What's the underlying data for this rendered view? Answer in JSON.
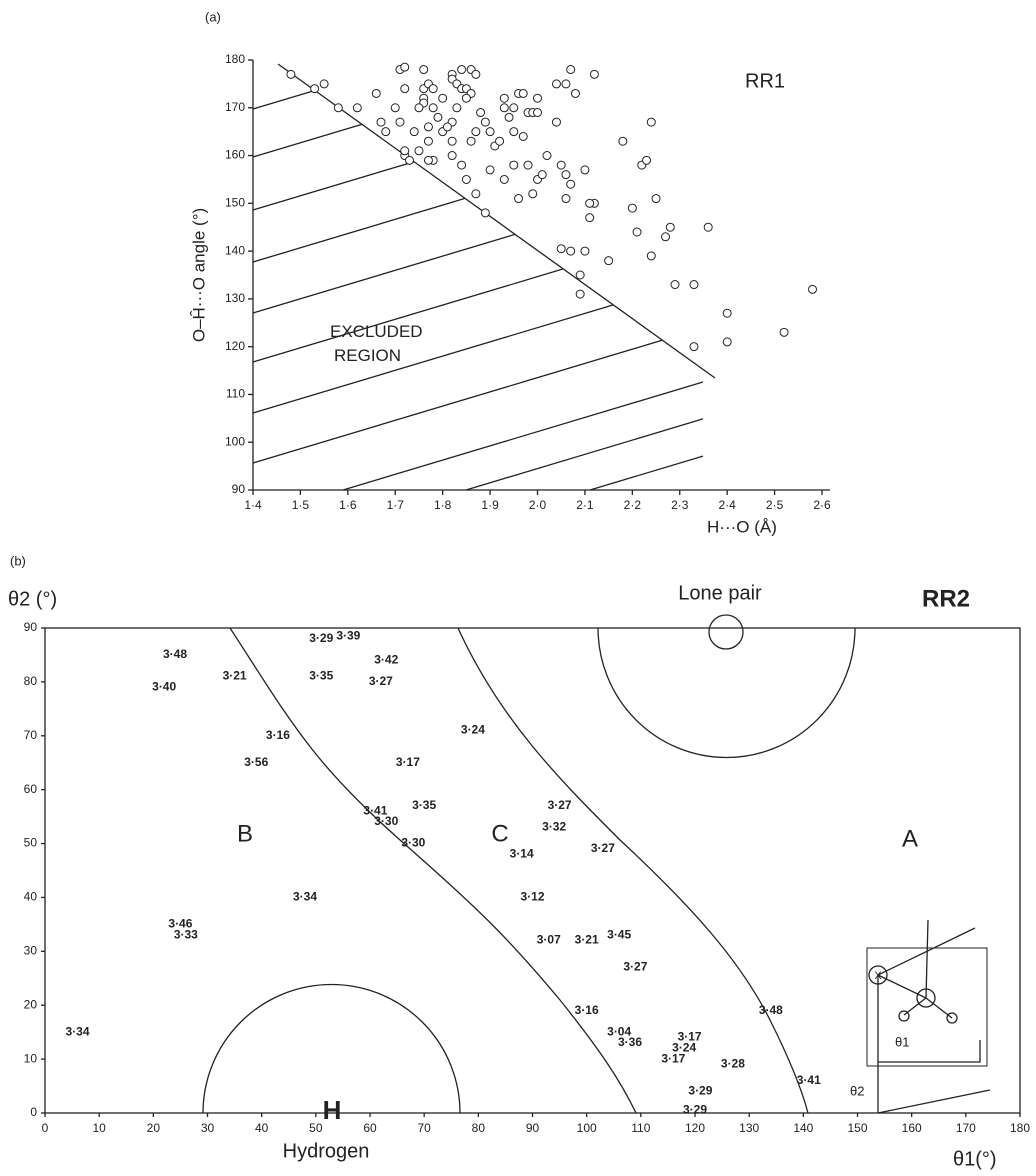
{
  "chart_data": [
    {
      "type": "scatter",
      "panel_label": "(a)",
      "title": "RR1",
      "x_label": "H···O (Å)",
      "y_label": "O–Ĥ···O angle (°)",
      "annotation": "EXCLUDED\nREGION",
      "xlim": [
        1.4,
        2.6
      ],
      "ylim": [
        90,
        180
      ],
      "xticks": [
        {
          "value": 1.4,
          "label": "1·4"
        },
        {
          "value": 1.5,
          "label": "1·5"
        },
        {
          "value": 1.6,
          "label": "1·6"
        },
        {
          "value": 1.7,
          "label": "1·7"
        },
        {
          "value": 1.8,
          "label": "1·8"
        },
        {
          "value": 1.9,
          "label": "1·9"
        },
        {
          "value": 2.0,
          "label": "2·0"
        },
        {
          "value": 2.1,
          "label": "2·1"
        },
        {
          "value": 2.2,
          "label": "2·2"
        },
        {
          "value": 2.3,
          "label": "2·3"
        },
        {
          "value": 2.4,
          "label": "2·4"
        },
        {
          "value": 2.5,
          "label": "2·5"
        },
        {
          "value": 2.6,
          "label": "2·6"
        }
      ],
      "yticks": [
        90,
        100,
        110,
        120,
        130,
        140,
        150,
        160,
        170,
        180
      ],
      "x": [
        1.48,
        1.53,
        1.55,
        1.58,
        1.62,
        1.66,
        1.68,
        1.67,
        1.71,
        1.72,
        1.72,
        1.7,
        1.71,
        1.72,
        1.73,
        1.72,
        1.74,
        1.75,
        1.76,
        1.76,
        1.77,
        1.78,
        1.76,
        1.78,
        1.79,
        1.77,
        1.8,
        1.77,
        1.78,
        1.77,
        1.76,
        1.75,
        1.8,
        1.82,
        1.82,
        1.83,
        1.84,
        1.85,
        1.86,
        1.84,
        1.86,
        1.87,
        1.85,
        1.83,
        1.82,
        1.81,
        1.82,
        1.82,
        1.84,
        1.85,
        1.87,
        1.86,
        1.87,
        1.88,
        1.89,
        1.9,
        1.91,
        1.9,
        1.92,
        1.93,
        1.94,
        1.93,
        1.95,
        1.96,
        1.97,
        1.95,
        1.97,
        1.98,
        1.99,
        2.0,
        2.0,
        2.02,
        2.0,
        1.99,
        1.96,
        1.93,
        1.95,
        2.04,
        2.06,
        2.07,
        2.08,
        2.04,
        2.05,
        2.07,
        2.06,
        2.06,
        2.1,
        2.12,
        2.12,
        2.11,
        2.1,
        2.11,
        2.15,
        2.18,
        2.2,
        2.21,
        2.22,
        2.23,
        2.24,
        2.25,
        2.24,
        2.27,
        2.28,
        2.29,
        2.33,
        2.36,
        2.33,
        2.4,
        2.4,
        2.52,
        2.58,
        2.09,
        2.09,
        2.07,
        2.05,
        1.89,
        1.98,
        2.01
      ],
      "values": [
        177,
        174,
        175,
        170,
        170,
        173,
        165,
        167,
        178,
        178.5,
        174,
        170,
        167,
        160,
        159,
        161,
        165,
        161,
        178,
        174,
        175,
        174,
        172,
        170,
        168,
        166,
        165,
        163,
        159,
        159,
        171,
        170,
        172,
        177,
        176,
        175,
        174,
        174,
        173,
        178,
        178,
        177,
        172,
        170,
        167,
        166,
        163,
        160,
        158,
        155,
        152,
        163,
        165,
        169,
        167,
        165,
        162,
        157,
        163,
        170,
        168,
        172,
        170,
        173,
        173,
        165,
        164,
        169,
        169,
        169,
        172,
        160,
        155,
        152,
        151,
        155,
        158,
        175,
        175,
        178,
        173,
        167,
        158,
        154,
        151,
        156,
        157,
        177,
        150,
        147,
        140,
        150,
        138,
        163,
        149,
        144,
        158,
        159,
        167,
        151,
        139,
        143,
        145,
        133,
        133,
        145,
        120,
        127,
        121,
        123,
        132,
        135,
        131,
        140,
        140.5,
        148,
        158,
        156
      ]
    },
    {
      "type": "scatter",
      "panel_label": "(b)",
      "title": "RR2",
      "x_label": "θ1(°)",
      "y_label": "θ2 (°)",
      "region_labels": [
        "B",
        "C",
        "A"
      ],
      "annotations": [
        "Lone pair",
        "H",
        "Hydrogen"
      ],
      "inset_labels": [
        "X",
        "θ1",
        "θ2"
      ],
      "xlim": [
        0,
        180
      ],
      "ylim": [
        0,
        90
      ],
      "xticks": [
        0,
        10,
        20,
        30,
        40,
        50,
        60,
        70,
        80,
        90,
        100,
        110,
        120,
        130,
        140,
        150,
        160,
        170,
        180
      ],
      "yticks": [
        0,
        10,
        20,
        30,
        40,
        50,
        60,
        70,
        80,
        90
      ],
      "x": [
        24,
        22,
        35,
        51,
        56,
        51,
        63,
        62,
        43,
        39,
        79,
        67,
        61,
        70,
        63,
        68,
        95,
        94,
        103,
        88,
        90,
        48,
        25,
        26,
        93,
        100,
        106,
        109,
        100,
        106,
        108,
        119,
        118,
        116,
        127,
        134,
        141,
        121,
        120,
        6
      ],
      "values": [
        85,
        79,
        81,
        88,
        88.5,
        81,
        84,
        80,
        70,
        65,
        71,
        65,
        56,
        57,
        54,
        50,
        57,
        53,
        49,
        48,
        40,
        40,
        35,
        33,
        32,
        32,
        33,
        27,
        19,
        15,
        13,
        14,
        12,
        10,
        9,
        19,
        6,
        4,
        0.5,
        15
      ],
      "point_labels": [
        "3·48",
        "3·40",
        "3·21",
        "3·29",
        "3·39",
        "3·35",
        "3·42",
        "3·27",
        "3·16",
        "3·56",
        "3·24",
        "3·17",
        "3·41",
        "3·35",
        "3·30",
        "3·30",
        "3·27",
        "3·32",
        "3·27",
        "3·14",
        "3·12",
        "3·34",
        "3·46",
        "3·33",
        "3·07",
        "3·21",
        "3·45",
        "3·27",
        "3·16",
        "3·04",
        "3·36",
        "3·17",
        "3·24",
        "3·17",
        "3·28",
        "3·48",
        "3·41",
        "3·29",
        "3·29",
        "3·34"
      ]
    }
  ]
}
